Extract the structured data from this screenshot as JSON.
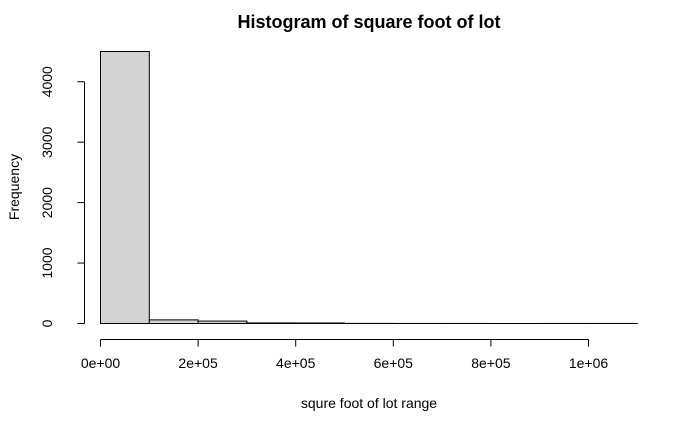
{
  "chart_data": {
    "type": "bar",
    "title": "Histogram of square foot of lot",
    "xlabel": "squre foot of lot range",
    "ylabel": "Frequency",
    "bin_edges": [
      0,
      100000,
      200000,
      300000,
      400000,
      500000,
      600000,
      700000,
      800000,
      900000,
      1000000,
      1100000
    ],
    "values": [
      4500,
      60,
      40,
      10,
      8,
      2,
      1,
      1,
      0,
      1,
      1
    ],
    "xlim": [
      0,
      1100000
    ],
    "ylim": [
      0,
      4500
    ],
    "x_ticks": [
      0,
      200000,
      400000,
      600000,
      800000,
      1000000
    ],
    "x_tick_labels": [
      "0e+00",
      "2e+05",
      "4e+05",
      "6e+05",
      "8e+05",
      "1e+06"
    ],
    "y_ticks": [
      0,
      1000,
      2000,
      3000,
      4000
    ],
    "y_tick_labels": [
      "0",
      "1000",
      "2000",
      "3000",
      "4000"
    ],
    "bar_color": "#d3d3d3",
    "grid": false,
    "legend": "none"
  }
}
